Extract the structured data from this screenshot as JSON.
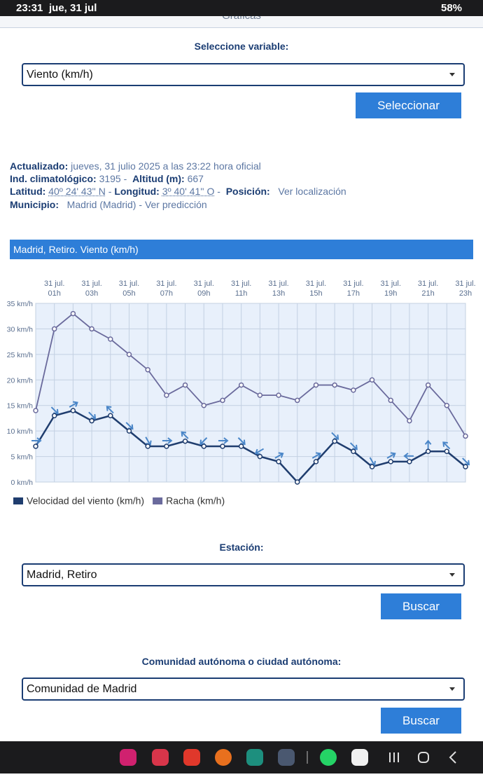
{
  "status_bar": {
    "time": "23:31",
    "date": "jue, 31 jul",
    "battery": "58%"
  },
  "header_title": "Gráficas",
  "variable_form": {
    "label": "Seleccione variable:",
    "selected": "Viento (km/h)",
    "button": "Seleccionar"
  },
  "station_info": {
    "updated_label": "Actualizado:",
    "updated_value": "jueves, 31 julio 2025 a las 23:22 hora oficial",
    "climatological_label": "Ind. climatológico:",
    "climatological_value": "3195",
    "altitude_label": "Altitud (m):",
    "altitude_value": "667",
    "latitude_label": "Latitud:",
    "latitude_value": "40º 24' 43'' N",
    "longitude_label": "Longitud:",
    "longitude_value": "3º 40' 41'' O",
    "position_label": "Posición:",
    "position_link": "Ver localización",
    "municipality_label": "Municipio:",
    "municipality_value": "Madrid (Madrid)",
    "forecast_link": "Ver predicción"
  },
  "chart_data": {
    "type": "line",
    "title": "Madrid, Retiro. Viento (km/h)",
    "categories": [
      null,
      "31 jul. 01h",
      null,
      "31 jul. 03h",
      null,
      "31 jul. 05h",
      null,
      "31 jul. 07h",
      null,
      "31 jul. 09h",
      null,
      "31 jul. 11h",
      null,
      "31 jul. 13h",
      null,
      "31 jul. 15h",
      null,
      "31 jul. 17h",
      null,
      "31 jul. 19h",
      null,
      "31 jul. 21h",
      null,
      "31 jul. 23h"
    ],
    "series": [
      {
        "name": "Velocidad del viento (km/h)",
        "color": "#1f3d6e",
        "values": [
          7,
          13,
          14,
          12,
          13,
          10,
          7,
          7,
          8,
          7,
          7,
          7,
          5,
          4,
          0,
          4,
          8,
          6,
          3,
          4,
          4,
          6,
          6,
          3
        ],
        "directions": [
          90,
          135,
          60,
          135,
          315,
          135,
          150,
          90,
          315,
          225,
          90,
          135,
          240,
          60,
          null,
          60,
          135,
          135,
          150,
          60,
          270,
          0,
          315,
          135
        ]
      },
      {
        "name": "Racha (km/h)",
        "color": "#6a6a9c",
        "values": [
          14,
          30,
          33,
          30,
          28,
          25,
          22,
          17,
          19,
          15,
          16,
          19,
          17,
          17,
          16,
          19,
          19,
          18,
          20,
          16,
          12,
          19,
          15,
          9
        ]
      }
    ],
    "ylim": [
      0,
      35
    ],
    "yticks": [
      {
        "value": 0,
        "label": "0 km/h"
      },
      {
        "value": 5,
        "label": "5 km/h"
      },
      {
        "value": 10,
        "label": "10 km/h"
      },
      {
        "value": 15,
        "label": "15 km/h"
      },
      {
        "value": 20,
        "label": "20 km/h"
      },
      {
        "value": 25,
        "label": "25 km/h"
      },
      {
        "value": 30,
        "label": "30 km/h"
      },
      {
        "value": 35,
        "label": "35 km/h"
      }
    ],
    "grid": true,
    "arrow_color": "#4a86c8",
    "legend": "bottom-left"
  },
  "station_form": {
    "label": "Estación:",
    "selected": "Madrid, Retiro",
    "button": "Buscar"
  },
  "community_form": {
    "label": "Comunidad autónoma o ciudad autónoma:",
    "selected": "Comunidad de Madrid",
    "button": "Buscar"
  }
}
